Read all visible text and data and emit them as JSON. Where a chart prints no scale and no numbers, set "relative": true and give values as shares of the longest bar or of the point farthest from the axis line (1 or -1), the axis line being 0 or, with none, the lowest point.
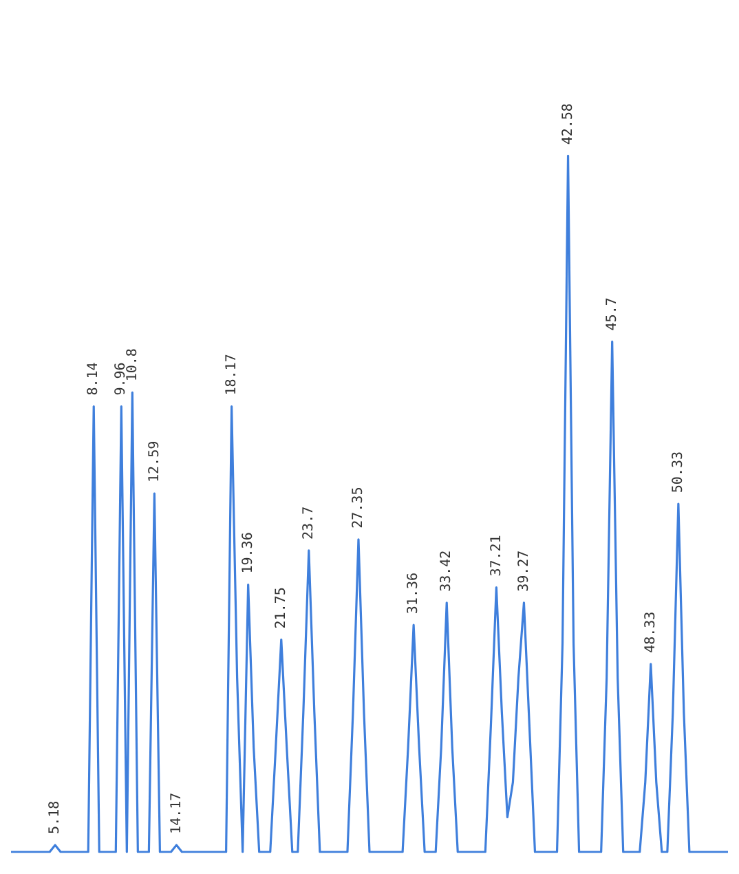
{
  "chart_data": {
    "type": "line",
    "relative": true,
    "tick_labels": false,
    "grid": false,
    "legend": false,
    "marker": "none",
    "categories": [
      null,
      null,
      null,
      null,
      null,
      null,
      null,
      null,
      null,
      null,
      null,
      null,
      null,
      null,
      null,
      null,
      null,
      null,
      null,
      null,
      null,
      null,
      null,
      null,
      null,
      null,
      null,
      null,
      null,
      null,
      null,
      null,
      null,
      null,
      null,
      null,
      null,
      null,
      null,
      null,
      null,
      null,
      null,
      null,
      null,
      null,
      null,
      null,
      null,
      null,
      null,
      null,
      null,
      null,
      null,
      null,
      null,
      null,
      null,
      null,
      null,
      null,
      null,
      null,
      null,
      null,
      null,
      null,
      null,
      null,
      null,
      null,
      null,
      null,
      null,
      null,
      null,
      null,
      null,
      null,
      null,
      null,
      null,
      null,
      null,
      null,
      null,
      null,
      null,
      null,
      null,
      null,
      null,
      null,
      null,
      null,
      null,
      null,
      null,
      null,
      null,
      null,
      null,
      null,
      null,
      null,
      null,
      null,
      null,
      null,
      null,
      null,
      null,
      null,
      null,
      null,
      null,
      null,
      null,
      null,
      null,
      null,
      null,
      null,
      null,
      null,
      null,
      null,
      null,
      null,
      null
    ],
    "series": [
      {
        "color": "#3f7fdc",
        "values": [
          0,
          0,
          0,
          0,
          0,
          0,
          0,
          0,
          0.01,
          0,
          0,
          0,
          0,
          0,
          0,
          0.64,
          0,
          0,
          0,
          0,
          0.64,
          0,
          0.66,
          0,
          0,
          0,
          0.515,
          0,
          0,
          0,
          0.01,
          0,
          0,
          0,
          0,
          0,
          0,
          0,
          0,
          0,
          0.64,
          0.25,
          0,
          0.384,
          0.15,
          0,
          0,
          0,
          0.15,
          0.305,
          0.15,
          0,
          0,
          0.2,
          0.433,
          0.2,
          0,
          0,
          0,
          0,
          0,
          0,
          0.2,
          0.449,
          0.2,
          0,
          0,
          0,
          0,
          0,
          0,
          0,
          0.15,
          0.326,
          0.15,
          0,
          0,
          0,
          0.15,
          0.358,
          0.15,
          0,
          0,
          0,
          0,
          0,
          0,
          0.18,
          0.38,
          0.2,
          0.05,
          0.1,
          0.25,
          0.358,
          0.18,
          0,
          0,
          0,
          0,
          0,
          0.3,
          1,
          0.3,
          0,
          0,
          0,
          0,
          0,
          0.25,
          0.733,
          0.25,
          0,
          0,
          0,
          0,
          0.1,
          0.27,
          0.1,
          0,
          0,
          0.2,
          0.5,
          0.2,
          0,
          0,
          0,
          0,
          0,
          0,
          0,
          0
        ]
      }
    ],
    "annotations": [
      "5.18",
      {
        "text": "8.14",
        "y": 0.64
      },
      {
        "text": "9.96",
        "y": 0.64
      },
      {
        "text": "10.8",
        "y": 0.66
      },
      {
        "text": "12.59",
        "y": 0.515
      },
      "14.17",
      {
        "text": "18.17",
        "y": 0.64
      },
      {
        "text": "19.36",
        "y": 0.384
      },
      {
        "text": "21.75",
        "y": 0.305
      },
      {
        "text": "23.7",
        "y": 0.433
      },
      {
        "text": "27.35",
        "y": 0.449
      },
      {
        "text": "31.36",
        "y": 0.326
      },
      {
        "text": "33.42",
        "y": 0.358
      },
      {
        "text": "37.21",
        "y": 0.38
      },
      {
        "text": "39.27",
        "y": 0.358
      },
      {
        "text": "42.58",
        "y": 1
      },
      {
        "text": "45.7",
        "y": 0.733
      },
      {
        "text": "48.33",
        "y": 0.27
      },
      {
        "text": "50.33",
        "y": 0.5
      }
    ]
  }
}
